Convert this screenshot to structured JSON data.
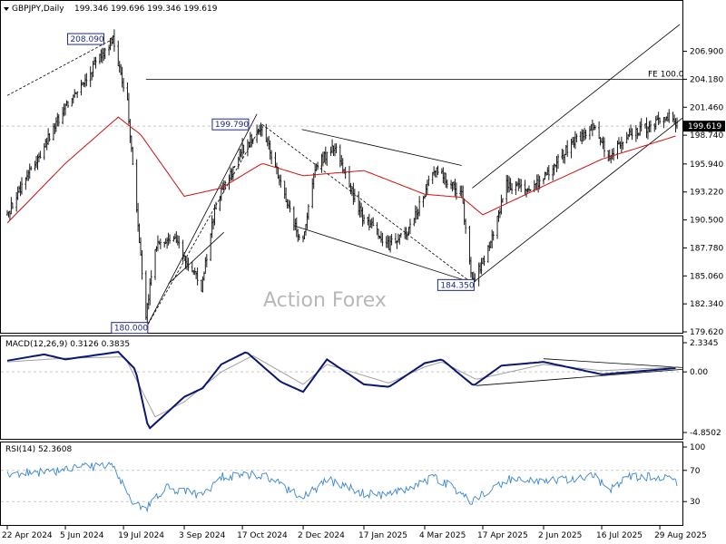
{
  "header": {
    "symbol": "GBPJPY,Daily",
    "ohlc": "199.346 199.696 199.346 199.619"
  },
  "watermark": "Action Forex",
  "colors": {
    "candles": "#1a1a1a",
    "ma": "#d01010",
    "macd": "#0a1670",
    "signal": "#a0a0a0",
    "rsi": "#3a86d0",
    "channel": "#000000"
  },
  "chart_data": [
    {
      "type": "candlestick",
      "title": "GBPJPY,Daily",
      "ylim": [
        179.62,
        208.8
      ],
      "y_ticks": [
        "206.900",
        "204.180",
        "201.460",
        "198.740",
        "195.940",
        "193.220",
        "190.500",
        "187.780",
        "185.060",
        "182.340",
        "179.620"
      ],
      "x_ticks": [
        "22 Apr 2024",
        "5 Jun 2024",
        "19 Jul 2024",
        "3 Sep 2024",
        "17 Oct 2024",
        "2 Dec 2024",
        "17 Jan 2025",
        "4 Mar 2025",
        "17 Apr 2025",
        "2 Jun 2025",
        "16 Jul 2025",
        "29 Aug 2025"
      ],
      "close_anchors": [
        {
          "date": "22 Apr 2024",
          "close": 191.0
        },
        {
          "date": "5 Jun 2024",
          "close": 201.5
        },
        {
          "date": "11 Jul 2024",
          "close": 208.09
        },
        {
          "date": "22 Jul 2024",
          "close": 202.0
        },
        {
          "date": "5 Aug 2024",
          "close": 181.0
        },
        {
          "date": "12 Aug 2024",
          "close": 188.0
        },
        {
          "date": "27 Aug 2024",
          "close": 188.5
        },
        {
          "date": "16 Sep 2024",
          "close": 184.0
        },
        {
          "date": "27 Sep 2024",
          "close": 192.0
        },
        {
          "date": "15 Oct 2024",
          "close": 197.0
        },
        {
          "date": "1 Nov 2024",
          "close": 199.79
        },
        {
          "date": "15 Nov 2024",
          "close": 194.0
        },
        {
          "date": "1 Dec 2024",
          "close": 188.0
        },
        {
          "date": "12 Dec 2024",
          "close": 196.0
        },
        {
          "date": "26 Dec 2024",
          "close": 197.5
        },
        {
          "date": "15 Jan 2025",
          "close": 191.0
        },
        {
          "date": "5 Feb 2025",
          "close": 188.0
        },
        {
          "date": "20 Feb 2025",
          "close": 189.5
        },
        {
          "date": "12 Mar 2025",
          "close": 195.5
        },
        {
          "date": "1 Apr 2025",
          "close": 193.0
        },
        {
          "date": "9 Apr 2025",
          "close": 184.35
        },
        {
          "date": "22 Apr 2025",
          "close": 188.0
        },
        {
          "date": "5 May 2025",
          "close": 194.0
        },
        {
          "date": "20 May 2025",
          "close": 193.5
        },
        {
          "date": "2 Jun 2025",
          "close": 194.5
        },
        {
          "date": "20 Jun 2025",
          "close": 197.5
        },
        {
          "date": "10 Jul 2025",
          "close": 199.5
        },
        {
          "date": "22 Jul 2025",
          "close": 196.5
        },
        {
          "date": "5 Aug 2025",
          "close": 199.0
        },
        {
          "date": "20 Aug 2025",
          "close": 199.5
        },
        {
          "date": "3 Sep 2025",
          "close": 200.7
        },
        {
          "date": "11 Sep 2025",
          "close": 199.619
        }
      ],
      "moving_average_anchors": [
        {
          "date": "22 Apr 2024",
          "value": 190.2
        },
        {
          "date": "5 Jun 2024",
          "value": 196.0
        },
        {
          "date": "15 Jul 2024",
          "value": 200.5
        },
        {
          "date": "1 Aug 2024",
          "value": 198.8
        },
        {
          "date": "3 Sep 2024",
          "value": 192.8
        },
        {
          "date": "1 Oct 2024",
          "value": 193.6
        },
        {
          "date": "1 Nov 2024",
          "value": 196.0
        },
        {
          "date": "2 Dec 2024",
          "value": 194.8
        },
        {
          "date": "17 Jan 2025",
          "value": 195.3
        },
        {
          "date": "4 Mar 2025",
          "value": 193.0
        },
        {
          "date": "1 Apr 2025",
          "value": 192.7
        },
        {
          "date": "17 Apr 2025",
          "value": 191.0
        },
        {
          "date": "2 Jun 2025",
          "value": 193.8
        },
        {
          "date": "16 Jul 2025",
          "value": 196.4
        },
        {
          "date": "11 Sep 2025",
          "value": 198.7
        }
      ],
      "annotations": [
        {
          "text": "208.090",
          "date": "11 Jul 2024",
          "price": 208.09
        },
        {
          "text": "199.790",
          "date": "1 Nov 2024",
          "price": 199.79
        },
        {
          "text": "184.350",
          "date": "9 Apr 2025",
          "price": 184.35
        },
        {
          "text": "180.000",
          "date": "5 Aug 2024",
          "price": 180.0
        },
        {
          "text": "FE 100.0",
          "price": 204.18
        }
      ],
      "current_price": "199.619"
    },
    {
      "type": "line",
      "title": "MACD(12,26,9) 0.3126 0.3835",
      "ylim": [
        -4.85,
        2.3345
      ],
      "y_ticks": [
        "2.3345",
        "0.00",
        "-4.8502"
      ],
      "series": [
        {
          "values": [
            {
              "date": "22 Apr 2024",
              "value": 0.9
            },
            {
              "date": "20 May 2024",
              "value": 1.4
            },
            {
              "date": "5 Jun 2024",
              "value": 1.0
            },
            {
              "date": "15 Jul 2024",
              "value": 1.6
            },
            {
              "date": "28 Jul 2024",
              "value": 0.2
            },
            {
              "date": "7 Aug 2024",
              "value": -4.6
            },
            {
              "date": "3 Sep 2024",
              "value": -2.0
            },
            {
              "date": "17 Sep 2024",
              "value": -1.3
            },
            {
              "date": "1 Oct 2024",
              "value": 0.6
            },
            {
              "date": "20 Oct 2024",
              "value": 1.6
            },
            {
              "date": "15 Nov 2024",
              "value": -0.8
            },
            {
              "date": "2 Dec 2024",
              "value": -1.6
            },
            {
              "date": "20 Dec 2024",
              "value": 1.0
            },
            {
              "date": "17 Jan 2025",
              "value": -1.0
            },
            {
              "date": "5 Feb 2025",
              "value": -1.2
            },
            {
              "date": "4 Mar 2025",
              "value": 0.7
            },
            {
              "date": "17 Mar 2025",
              "value": 1.0
            },
            {
              "date": "10 Apr 2025",
              "value": -1.1
            },
            {
              "date": "1 May 2025",
              "value": 0.5
            },
            {
              "date": "2 Jun 2025",
              "value": 0.8
            },
            {
              "date": "16 Jul 2025",
              "value": -0.2
            },
            {
              "date": "11 Sep 2025",
              "value": 0.31
            }
          ]
        },
        {
          "values": [
            {
              "date": "22 Apr 2024",
              "value": 0.8
            },
            {
              "date": "5 Jun 2024",
              "value": 1.1
            },
            {
              "date": "20 Jul 2024",
              "value": 1.2
            },
            {
              "date": "12 Aug 2024",
              "value": -3.6
            },
            {
              "date": "3 Sep 2024",
              "value": -2.4
            },
            {
              "date": "1 Oct 2024",
              "value": 0.0
            },
            {
              "date": "25 Oct 2024",
              "value": 1.3
            },
            {
              "date": "2 Dec 2024",
              "value": -1.0
            },
            {
              "date": "20 Dec 2024",
              "value": 0.6
            },
            {
              "date": "5 Feb 2025",
              "value": -0.9
            },
            {
              "date": "4 Mar 2025",
              "value": 0.4
            },
            {
              "date": "17 Mar 2025",
              "value": 0.8
            },
            {
              "date": "12 Apr 2025",
              "value": -0.6
            },
            {
              "date": "2 Jun 2025",
              "value": 0.6
            },
            {
              "date": "16 Jul 2025",
              "value": 0.1
            },
            {
              "date": "11 Sep 2025",
              "value": 0.38
            }
          ]
        }
      ]
    },
    {
      "type": "line",
      "title": "RSI(14) 52.3608",
      "ylim": [
        0,
        100
      ],
      "y_ticks": [
        "100",
        "70",
        "30",
        "0"
      ],
      "series": [
        {
          "values": [
            {
              "date": "22 Apr 2024",
              "value": 65
            },
            {
              "date": "20 May 2024",
              "value": 68
            },
            {
              "date": "11 Jul 2024",
              "value": 78
            },
            {
              "date": "24 Jul 2024",
              "value": 32
            },
            {
              "date": "5 Aug 2024",
              "value": 20
            },
            {
              "date": "20 Aug 2024",
              "value": 48
            },
            {
              "date": "16 Sep 2024",
              "value": 38
            },
            {
              "date": "1 Oct 2024",
              "value": 62
            },
            {
              "date": "1 Nov 2024",
              "value": 64
            },
            {
              "date": "2 Dec 2024",
              "value": 35
            },
            {
              "date": "20 Dec 2024",
              "value": 58
            },
            {
              "date": "17 Jan 2025",
              "value": 40
            },
            {
              "date": "5 Feb 2025",
              "value": 38
            },
            {
              "date": "12 Mar 2025",
              "value": 62
            },
            {
              "date": "9 Apr 2025",
              "value": 30
            },
            {
              "date": "5 May 2025",
              "value": 58
            },
            {
              "date": "2 Jun 2025",
              "value": 55
            },
            {
              "date": "10 Jul 2025",
              "value": 62
            },
            {
              "date": "22 Jul 2025",
              "value": 45
            },
            {
              "date": "5 Aug 2025",
              "value": 62
            },
            {
              "date": "3 Sep 2025",
              "value": 62
            },
            {
              "date": "11 Sep 2025",
              "value": 52.36
            }
          ]
        }
      ],
      "levels": [
        70,
        30
      ]
    }
  ]
}
